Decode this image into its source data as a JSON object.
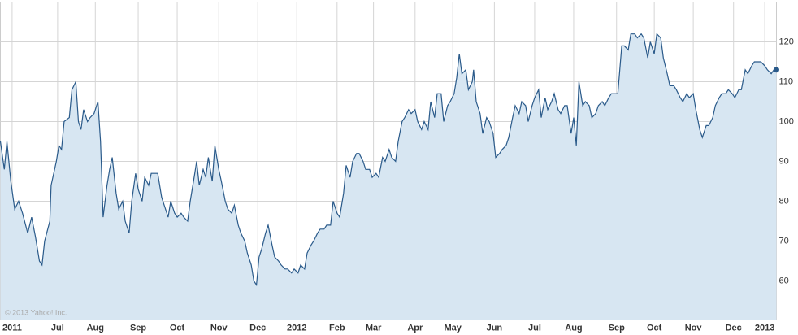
{
  "chart_data": {
    "type": "area",
    "watermark": "© 2013 Yahoo! Inc.",
    "x": [
      0,
      3,
      5,
      8,
      11,
      14,
      17,
      21,
      24,
      27,
      30,
      32,
      34,
      38,
      39,
      43,
      45,
      47,
      49,
      53,
      55,
      58,
      60,
      62,
      64,
      67,
      69,
      72,
      75,
      77,
      79,
      82,
      84,
      86,
      89,
      91,
      94,
      96,
      99,
      101,
      104,
      106,
      109,
      111,
      114,
      116,
      119,
      121,
      124,
      126,
      129,
      131,
      134,
      136,
      139,
      141,
      144,
      146,
      149,
      151,
      153,
      156,
      158,
      160,
      163,
      165,
      168,
      170,
      173,
      175,
      178,
      180,
      183,
      185,
      188,
      190,
      193,
      195,
      197,
      199,
      201,
      204,
      206,
      209,
      211,
      214,
      216,
      219,
      221,
      224,
      226,
      229,
      231,
      234,
      236,
      239,
      241,
      244,
      246,
      249,
      251,
      254,
      256,
      259,
      261,
      264,
      266,
      269,
      271,
      274,
      276,
      279,
      281,
      284,
      286,
      289,
      291,
      294,
      296,
      299,
      301,
      304,
      306,
      309,
      311,
      314,
      316,
      319,
      321,
      324,
      326,
      329,
      331,
      334,
      336,
      339,
      341,
      344,
      346,
      349,
      351,
      353,
      355,
      358,
      360,
      363,
      364,
      366,
      369,
      371,
      374,
      376,
      379,
      381,
      384,
      386,
      389,
      391,
      394,
      396,
      399,
      401,
      404,
      406,
      409,
      411,
      414,
      416,
      419,
      421,
      424,
      426,
      429,
      431,
      434,
      436,
      439,
      441,
      443,
      445,
      448,
      450,
      453,
      455,
      458,
      460,
      463,
      465,
      468,
      470,
      473,
      475,
      478,
      480,
      483,
      485,
      488,
      490,
      493,
      495,
      498,
      500,
      503,
      505,
      508,
      510,
      513,
      515,
      518,
      520,
      523,
      525,
      528,
      530,
      533,
      535,
      538,
      540,
      543,
      545,
      548,
      550,
      553,
      555,
      558,
      560,
      563,
      565,
      568,
      570,
      573,
      575,
      578,
      580,
      583,
      585,
      588,
      590,
      593,
      595,
      597
    ],
    "values": [
      95,
      88,
      95,
      85,
      78,
      80,
      77,
      72,
      76,
      71,
      65,
      64,
      70,
      75,
      84,
      90,
      94,
      93,
      100,
      101,
      108,
      110,
      100,
      98,
      103,
      100,
      101,
      102,
      105,
      95,
      76,
      84,
      88,
      91,
      82,
      78,
      80,
      75,
      72,
      80,
      87,
      83,
      80,
      86,
      84,
      87,
      87,
      87,
      81,
      79,
      76,
      80,
      77,
      76,
      77,
      76,
      75,
      80,
      86,
      90,
      84,
      88,
      86,
      91,
      85,
      94,
      88,
      85,
      80,
      78,
      77,
      79,
      74,
      72,
      70,
      67,
      64,
      60,
      59,
      66,
      68,
      72,
      74,
      69,
      66,
      65,
      64,
      63,
      63,
      62,
      63,
      62,
      64,
      63,
      67,
      69,
      70,
      72,
      73,
      73,
      74,
      74,
      80,
      77,
      76,
      82,
      89,
      86,
      90,
      92,
      92,
      90,
      88,
      88,
      86,
      87,
      86,
      91,
      90,
      93,
      91,
      90,
      95,
      100,
      101,
      103,
      102,
      103,
      100,
      98,
      100,
      98,
      105,
      101,
      107,
      107,
      100,
      104,
      105,
      107,
      111,
      117,
      112,
      113,
      108,
      110,
      113,
      105,
      102,
      97,
      101,
      100,
      97,
      91,
      92,
      93,
      94,
      96,
      101,
      104,
      102,
      105,
      104,
      100,
      104,
      106,
      108,
      101,
      106,
      103,
      105,
      107,
      103,
      102,
      104,
      104,
      97,
      101,
      94,
      110,
      104,
      105,
      104,
      101,
      102,
      104,
      105,
      104,
      106,
      107,
      107,
      107,
      119,
      119,
      118,
      122,
      122,
      121,
      122,
      121,
      116,
      120,
      117,
      122,
      121,
      116,
      112,
      109,
      109,
      108,
      106,
      105,
      107,
      106,
      107,
      103,
      98,
      96,
      99,
      99,
      101,
      104,
      106,
      107,
      107,
      108,
      107,
      106,
      108,
      108,
      113,
      112,
      114,
      115,
      115,
      115,
      114,
      113,
      112,
      113,
      113
    ],
    "color": "#2a5a8a",
    "fill": "#d7e6f2",
    "xlim": [
      0,
      597
    ],
    "xticks": [
      {
        "value": 9,
        "label": "2011"
      },
      {
        "value": 44,
        "label": "Jul"
      },
      {
        "value": 73,
        "label": "Aug"
      },
      {
        "value": 106,
        "label": "Sep"
      },
      {
        "value": 136,
        "label": "Oct"
      },
      {
        "value": 168,
        "label": "Nov"
      },
      {
        "value": 198,
        "label": "Dec"
      },
      {
        "value": 228,
        "label": "2012"
      },
      {
        "value": 259,
        "label": "Feb"
      },
      {
        "value": 287,
        "label": "Mar"
      },
      {
        "value": 319,
        "label": "Apr"
      },
      {
        "value": 348,
        "label": "May"
      },
      {
        "value": 380,
        "label": "Jun"
      },
      {
        "value": 411,
        "label": "Jul"
      },
      {
        "value": 441,
        "label": "Aug"
      },
      {
        "value": 474,
        "label": "Sep"
      },
      {
        "value": 503,
        "label": "Oct"
      },
      {
        "value": 533,
        "label": "Nov"
      },
      {
        "value": 564,
        "label": "Dec"
      },
      {
        "value": 588,
        "label": "2013"
      }
    ],
    "ylim": [
      50.2,
      130
    ],
    "yticks": [
      60,
      70,
      80,
      90,
      100,
      110,
      120
    ],
    "grid": true
  }
}
